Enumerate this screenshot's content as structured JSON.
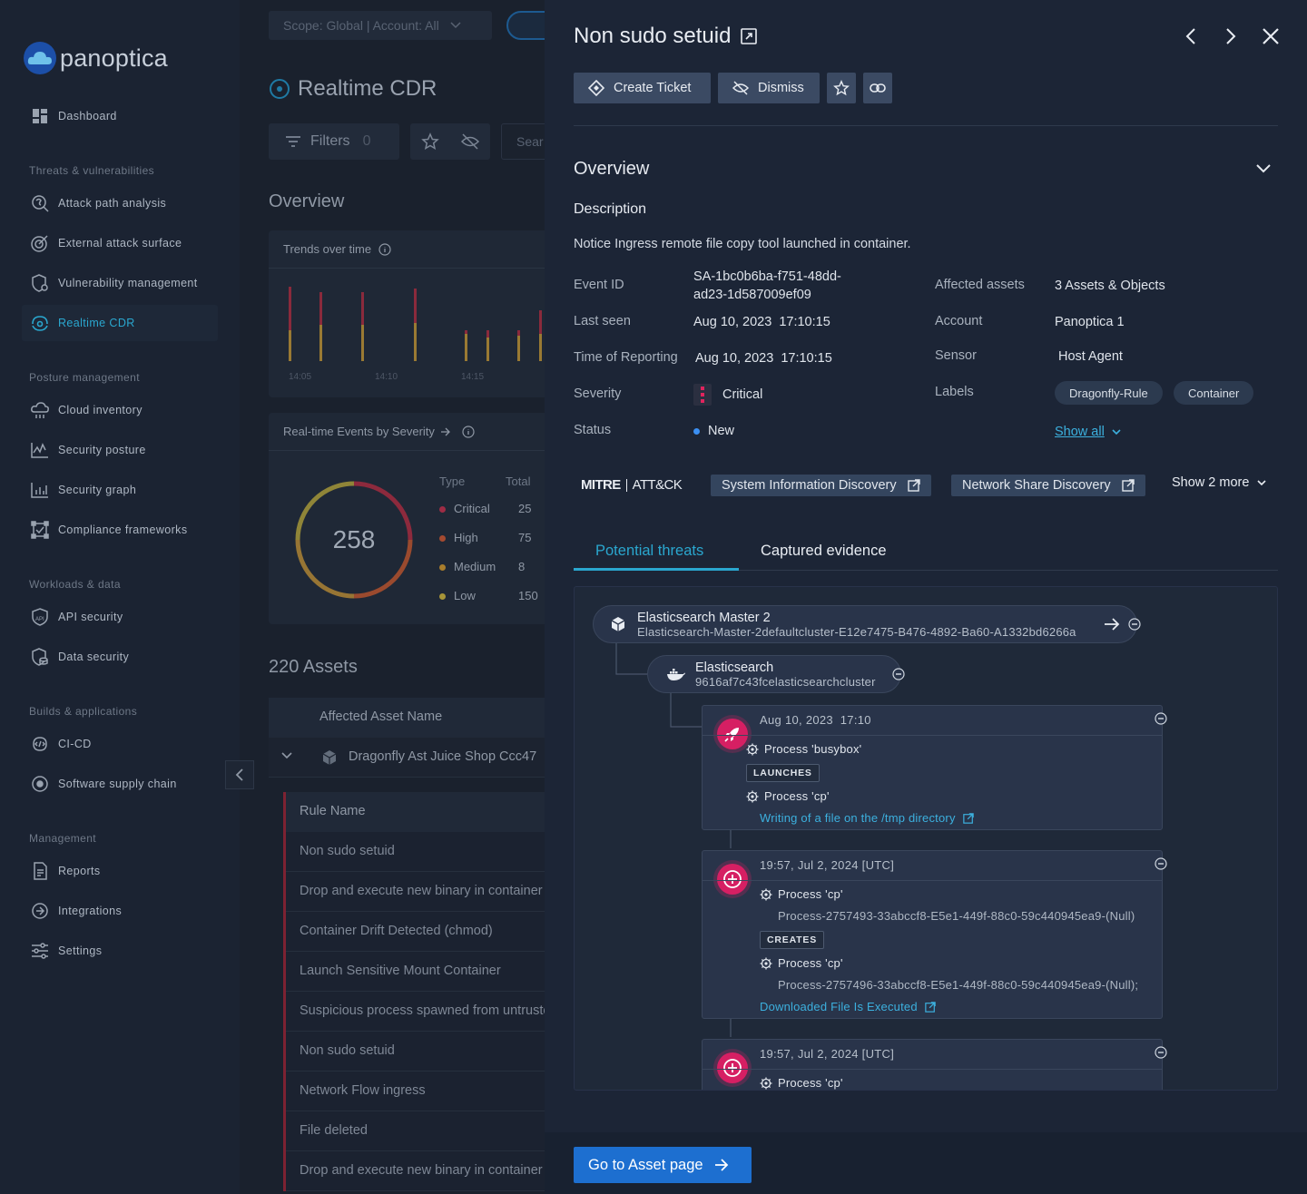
{
  "app": {
    "brand": "panoptica"
  },
  "sidebar": {
    "dashboard": "Dashboard",
    "sections": {
      "threats": "Threats & vulnerabilities",
      "posture": "Posture management",
      "workloads": "Workloads & data",
      "builds": "Builds & applications",
      "management": "Management"
    },
    "items": {
      "attack_path": "Attack path analysis",
      "external": "External attack surface",
      "vuln": "Vulnerability management",
      "realtime": "Realtime CDR",
      "cloud_inventory": "Cloud inventory",
      "security_posture": "Security posture",
      "security_graph": "Security graph",
      "compliance": "Compliance frameworks",
      "api": "API security",
      "data": "Data security",
      "cicd": "CI-CD",
      "supply": "Software supply chain",
      "reports": "Reports",
      "integrations": "Integrations",
      "settings": "Settings"
    }
  },
  "main": {
    "scope": "Scope: Global | Account: All",
    "page_title": "Realtime CDR",
    "filters_label": "Filters",
    "filters_count": "0",
    "search_placeholder": "Sear",
    "overview": "Overview",
    "trends_title": "Trends over time",
    "trend_ticks": [
      "14:05",
      "14:10",
      "14:15"
    ],
    "events_title": "Real-time Events by Severity",
    "donut_total": "258",
    "legend_type": "Type",
    "legend_total": "Total",
    "legend": [
      {
        "name": "Critical",
        "value": "25",
        "color": "#c92d4b"
      },
      {
        "name": "High",
        "value": "75",
        "color": "#d2562f"
      },
      {
        "name": "Medium",
        "value": "8",
        "color": "#d79a2a"
      },
      {
        "name": "Low",
        "value": "150",
        "color": "#d4b83a"
      }
    ],
    "assets_title": "220 Assets",
    "asset_col": "Affected Asset Name",
    "asset_row": "Dragonfly Ast Juice Shop Ccc47",
    "rule_col": "Rule Name",
    "rules": [
      "Non sudo setuid",
      "Drop and execute new binary in container",
      "Container Drift Detected (chmod)",
      "Launch Sensitive Mount Container",
      "Suspicious process spawned from untrusted",
      "Non sudo setuid",
      "Network Flow ingress",
      "File deleted",
      "Drop and execute new binary in container"
    ]
  },
  "panel": {
    "title": "Non sudo setuid",
    "actions": {
      "create_ticket": "Create Ticket",
      "dismiss": "Dismiss"
    },
    "overview_heading": "Overview",
    "description_heading": "Description",
    "description": "Notice Ingress remote file copy tool launched in container.",
    "fields": {
      "event_id_label": "Event ID",
      "event_id_line1": "SA-1bc0b6ba-f751-48dd-",
      "event_id_line2": "ad23-1d587009ef09",
      "last_seen_label": "Last seen",
      "last_seen": "Aug 10, 2023  17:10:15",
      "reporting_label": "Time of Reporting",
      "reporting": "Aug 10, 2023  17:10:15",
      "severity_label": "Severity",
      "severity": "Critical",
      "status_label": "Status",
      "status": "New",
      "assets_label": "Affected assets",
      "assets": "3 Assets & Objects",
      "account_label": "Account",
      "account": "Panoptica 1",
      "sensor_label": "Sensor",
      "sensor": "Host Agent",
      "labels_label": "Labels",
      "labels": [
        "Dragonfly-Rule",
        "Container"
      ],
      "show_all": "Show all"
    },
    "mitre": {
      "logo_left": "MITRE",
      "logo_right": "ATT&CK",
      "techniques": [
        "System Information Discovery",
        "Network Share Discovery"
      ],
      "show_more": "Show 2 more"
    },
    "tabs": [
      "Potential threats",
      "Captured evidence"
    ],
    "tree": {
      "root_title": "Elasticsearch Master 2",
      "root_sub": "Elasticsearch-Master-2defaultcluster-E12e7475-B476-4892-Ba60-A1332bd6266a",
      "child_title": "Elasticsearch",
      "child_sub": "9616af7c43fcelasticsearchcluster",
      "events": [
        {
          "time": "Aug 10, 2023  17:10",
          "process1": "Process 'busybox'",
          "verb": "LAUNCHES",
          "process2": "Process 'cp'",
          "link": "Writing of a file on the /tmp directory"
        },
        {
          "time": "19:57, Jul 2, 2024 [UTC]",
          "process1": "Process 'cp'",
          "process1_sub": "Process-2757493-33abccf8-E5e1-449f-88c0-59c440945ea9-(Null)",
          "verb": "CREATES",
          "process2": "Process 'cp'",
          "process2_sub": "Process-2757496-33abccf8-E5e1-449f-88c0-59c440945ea9-(Null);",
          "link": "Downloaded File Is Executed"
        },
        {
          "time": "19:57, Jul 2, 2024 [UTC]",
          "process1": "Process 'cp'"
        }
      ]
    },
    "go_button": "Go to Asset page"
  }
}
